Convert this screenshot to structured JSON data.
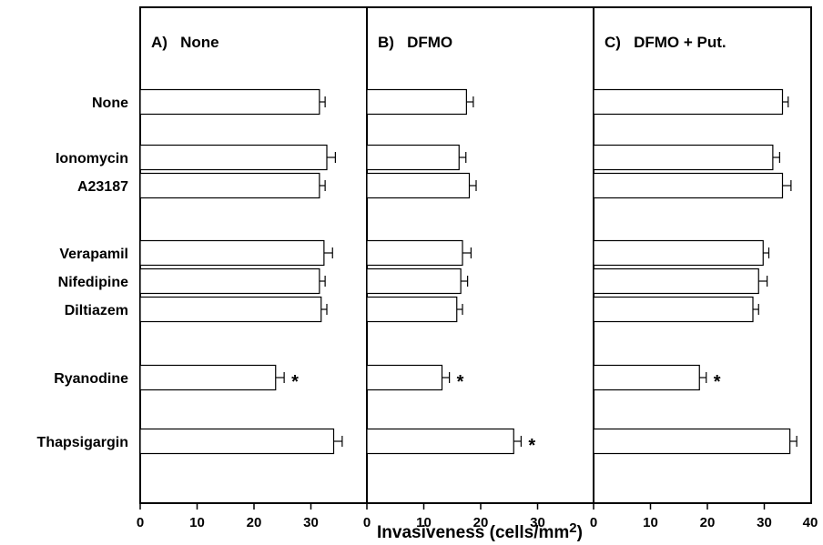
{
  "chart_data": {
    "type": "bar",
    "orientation": "horizontal",
    "categories": [
      "None",
      "Ionomycin",
      "A23187",
      "Verapamil",
      "Nifedipine",
      "Diltiazem",
      "Ryanodine",
      "Thapsigargin"
    ],
    "xlabel": "Invasiveness (cells/mm",
    "xlabel_superscript": "2",
    "xlabel_suffix": ")",
    "xlim": [
      0,
      40
    ],
    "xticks": [
      "0",
      "10",
      "20",
      "30"
    ],
    "last_tick_label": "40",
    "error_bars": true,
    "bar_fill": "#ffffff",
    "bar_stroke": "#000000",
    "significance_marker": "*",
    "panels": [
      {
        "title": "A)   None",
        "values": [
          31.5,
          32.8,
          31.5,
          32.3,
          31.5,
          31.8,
          23.8,
          34.0
        ],
        "errors": [
          1.0,
          1.5,
          1.0,
          1.5,
          1.0,
          1.0,
          1.5,
          1.5
        ],
        "significant": [
          false,
          false,
          false,
          false,
          false,
          false,
          true,
          false
        ]
      },
      {
        "title": "B)   DFMO",
        "values": [
          17.5,
          16.2,
          18.0,
          16.8,
          16.5,
          15.8,
          13.2,
          25.8
        ],
        "errors": [
          1.2,
          1.2,
          1.2,
          1.5,
          1.2,
          1.0,
          1.3,
          1.3
        ],
        "significant": [
          false,
          false,
          false,
          false,
          false,
          false,
          true,
          true
        ]
      },
      {
        "title": "C)   DFMO + Put.",
        "values": [
          33.2,
          31.5,
          33.2,
          29.8,
          29.0,
          28.0,
          18.6,
          34.5
        ],
        "errors": [
          1.0,
          1.2,
          1.5,
          1.0,
          1.5,
          1.0,
          1.2,
          1.2
        ],
        "significant": [
          false,
          false,
          false,
          false,
          false,
          false,
          true,
          false
        ]
      }
    ]
  }
}
